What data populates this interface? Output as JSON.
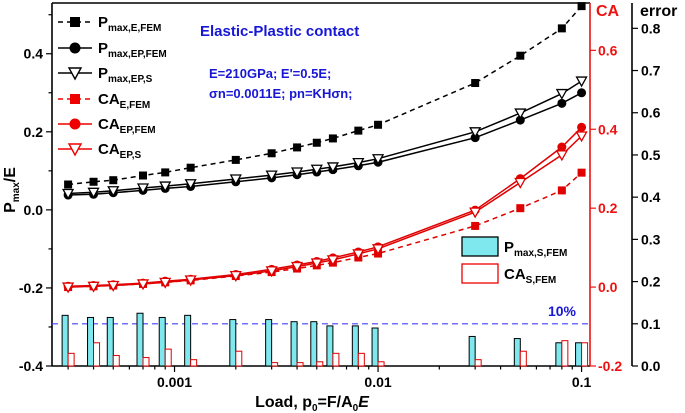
{
  "chart_data": {
    "type": "line",
    "x_scale": "log",
    "xlim": [
      0.00025,
      0.11
    ],
    "xlabel": "Load, p0=F/A0E",
    "ylabel": "Pmax/E",
    "ylabel_right1": "CA",
    "ylabel_right2": "error",
    "ylim_left": [
      -0.4,
      0.53
    ],
    "ylim_ca": [
      -0.2,
      0.72
    ],
    "ylim_error": [
      0,
      0.86
    ],
    "x_ticks": [
      {
        "value": 0.001,
        "label": "0.001"
      },
      {
        "value": 0.01,
        "label": "0.01"
      },
      {
        "value": 0.1,
        "label": "0.1"
      }
    ],
    "y_ticks_left": [
      {
        "value": -0.4,
        "label": "-0.4"
      },
      {
        "value": -0.2,
        "label": "-0.2"
      },
      {
        "value": 0.0,
        "label": "0.0"
      },
      {
        "value": 0.2,
        "label": "0.2"
      },
      {
        "value": 0.4,
        "label": "0.4"
      }
    ],
    "y_ticks_ca": [
      {
        "value": -0.2,
        "label": "-0.2"
      },
      {
        "value": 0.0,
        "label": "0.0"
      },
      {
        "value": 0.2,
        "label": "0.2"
      },
      {
        "value": 0.4,
        "label": "0.4"
      },
      {
        "value": 0.6,
        "label": "0.6"
      }
    ],
    "y_ticks_error": [
      {
        "value": 0.0,
        "label": "0.0"
      },
      {
        "value": 0.1,
        "label": "0.1"
      },
      {
        "value": 0.2,
        "label": "0.2"
      },
      {
        "value": 0.3,
        "label": "0.3"
      },
      {
        "value": 0.4,
        "label": "0.4"
      },
      {
        "value": 0.5,
        "label": "0.5"
      },
      {
        "value": 0.6,
        "label": "0.6"
      },
      {
        "value": 0.7,
        "label": "0.7"
      },
      {
        "value": 0.8,
        "label": "0.8"
      }
    ],
    "x": [
      0.0003,
      0.0004,
      0.0005,
      0.0007,
      0.0009,
      0.0012,
      0.002,
      0.003,
      0.004,
      0.005,
      0.006,
      0.008,
      0.01,
      0.03,
      0.05,
      0.08,
      0.1
    ],
    "series": [
      {
        "name": "Pmax,E,FEM",
        "axis": "left",
        "color": "#000000",
        "marker": "square",
        "dash": true,
        "values": [
          0.065,
          0.072,
          0.076,
          0.088,
          0.096,
          0.108,
          0.128,
          0.145,
          0.16,
          0.172,
          0.183,
          0.203,
          0.218,
          0.325,
          0.395,
          0.465,
          0.522
        ]
      },
      {
        "name": "Pmax,EP,FEM",
        "axis": "left",
        "color": "#000000",
        "marker": "circle",
        "dash": false,
        "values": [
          0.038,
          0.04,
          0.044,
          0.05,
          0.055,
          0.06,
          0.072,
          0.082,
          0.09,
          0.097,
          0.103,
          0.113,
          0.122,
          0.185,
          0.23,
          0.273,
          0.3
        ]
      },
      {
        "name": "Pmax,EP,S",
        "axis": "left",
        "color": "#000000",
        "marker": "triangle-down",
        "dash": false,
        "values": [
          0.042,
          0.045,
          0.049,
          0.056,
          0.061,
          0.067,
          0.079,
          0.089,
          0.097,
          0.104,
          0.11,
          0.121,
          0.131,
          0.2,
          0.248,
          0.298,
          0.33
        ]
      },
      {
        "name": "CAE,FEM",
        "axis": "ca",
        "color": "#e00000",
        "marker": "square",
        "dash": true,
        "values": [
          0.0,
          0.002,
          0.004,
          0.008,
          0.012,
          0.017,
          0.028,
          0.038,
          0.047,
          0.055,
          0.062,
          0.075,
          0.085,
          0.155,
          0.2,
          0.245,
          0.29
        ]
      },
      {
        "name": "CAEP,FEM",
        "axis": "ca",
        "color": "#e00000",
        "marker": "circle",
        "dash": false,
        "values": [
          0.002,
          0.004,
          0.006,
          0.01,
          0.015,
          0.02,
          0.032,
          0.045,
          0.056,
          0.065,
          0.074,
          0.089,
          0.102,
          0.195,
          0.275,
          0.355,
          0.405
        ]
      },
      {
        "name": "CAEP,S",
        "axis": "ca",
        "color": "#e00000",
        "marker": "triangle-down",
        "dash": false,
        "values": [
          0.0,
          0.002,
          0.004,
          0.008,
          0.012,
          0.018,
          0.029,
          0.041,
          0.052,
          0.061,
          0.069,
          0.084,
          0.097,
          0.19,
          0.265,
          0.335,
          0.383
        ]
      }
    ],
    "error_bars": [
      {
        "name": "Pmax,S,FEM",
        "axis": "error",
        "fill": "#7ee8ee",
        "stroke": "#000000",
        "values": [
          0.12,
          0.115,
          0.115,
          0.125,
          0.115,
          0.12,
          0.11,
          0.11,
          0.105,
          0.105,
          0.095,
          0.095,
          0.09,
          0.07,
          0.065,
          0.055,
          0.055
        ]
      },
      {
        "name": "CAS,FEM",
        "axis": "error",
        "fill": "#ffffff",
        "stroke": "#e00000",
        "values": [
          0.03,
          0.055,
          0.025,
          0.02,
          0.04,
          0.015,
          0.035,
          0.008,
          0.008,
          0.01,
          0.03,
          0.03,
          0.01,
          0.015,
          0.035,
          0.06,
          0.055
        ]
      }
    ],
    "threshold": {
      "value": 0.1,
      "axis": "error",
      "label": "10%",
      "color": "#4444ff"
    }
  },
  "annotations": {
    "title": "Elastic-Plastic contact",
    "line1": "E=210GPa; E'=0.5E;",
    "line2": "σn=0.0011E; pn=KHσn;"
  },
  "legend": {
    "p_e_fem": {
      "main": "P",
      "sub": "max,E,FEM"
    },
    "p_ep_fem": {
      "main": "P",
      "sub": "max,EP,FEM"
    },
    "p_ep_s": {
      "main": "P",
      "sub": "max,EP,S"
    },
    "ca_e_fem": {
      "main": "CA",
      "sub": "E,FEM"
    },
    "ca_ep_fem": {
      "main": "CA",
      "sub": "EP,FEM"
    },
    "ca_ep_s": {
      "main": "CA",
      "sub": "EP,S"
    },
    "err_p": {
      "main": "P",
      "sub": "max,S,FEM"
    },
    "err_ca": {
      "main": "CA",
      "sub": "S,FEM"
    }
  },
  "labels": {
    "x_title_main": "Load, p",
    "x_title_sub0": "0",
    "x_title_mid": "=F/A",
    "x_title_sub1": "0",
    "x_title_end": "E",
    "y_title_main": "P",
    "y_title_sub": "max",
    "y_title_end": "/E",
    "ca_title": "CA",
    "error_title": "error"
  }
}
